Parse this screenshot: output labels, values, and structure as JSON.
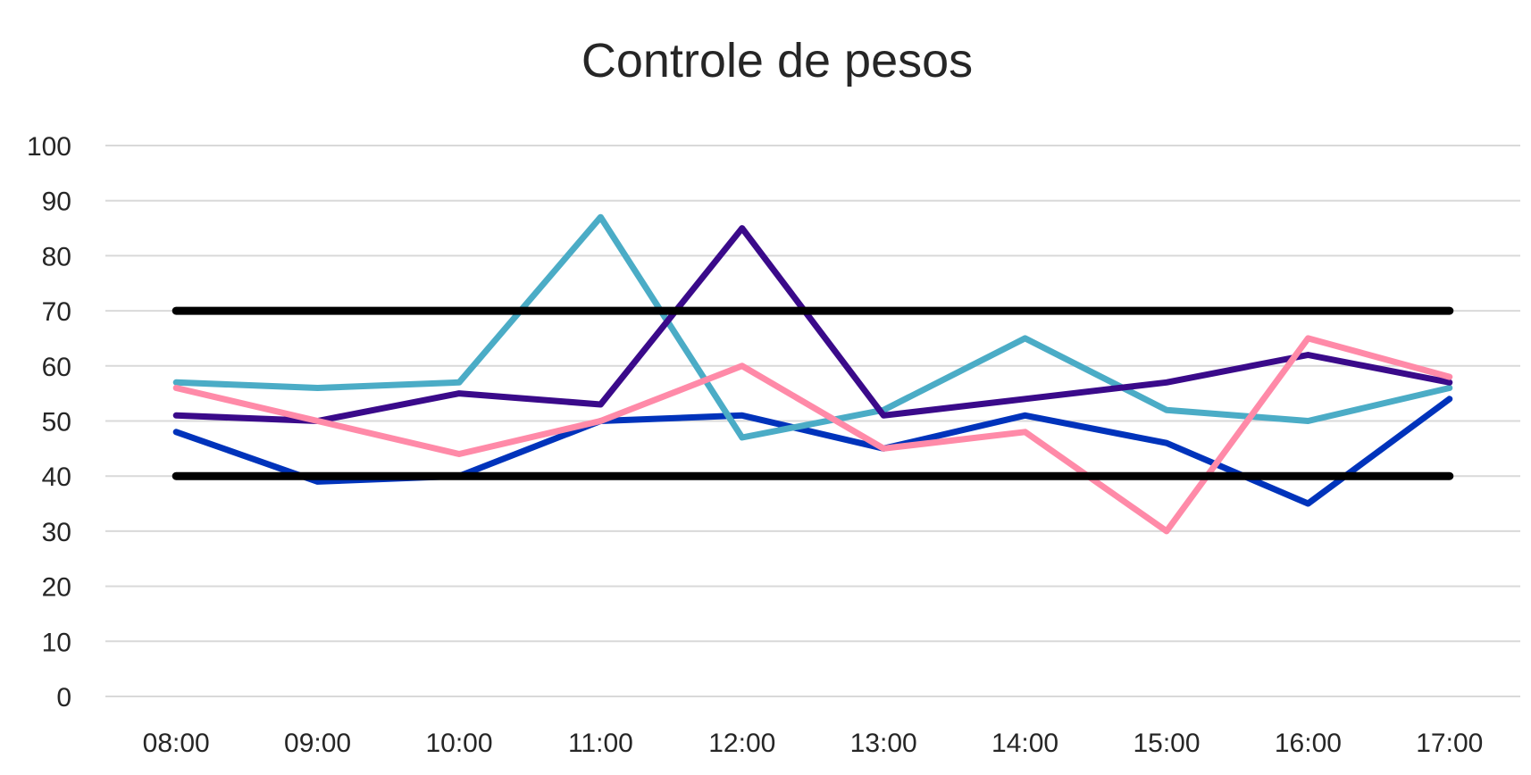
{
  "chart_data": {
    "type": "line",
    "title": "Controle de pesos",
    "xlabel": "",
    "ylabel": "",
    "ylim": [
      0,
      100
    ],
    "y_ticks": [
      "0",
      "10",
      "20",
      "30",
      "40",
      "50",
      "60",
      "70",
      "80",
      "90",
      "100"
    ],
    "categories": [
      "08:00",
      "09:00",
      "10:00",
      "11:00",
      "12:00",
      "13:00",
      "14:00",
      "15:00",
      "16:00",
      "17:00"
    ],
    "grid": true,
    "legend": "none",
    "series": [
      {
        "color": "#0033BB",
        "role": "data",
        "values": [
          48,
          39,
          40,
          50,
          51,
          45,
          51,
          46,
          35,
          54
        ]
      },
      {
        "color": "#4BACC6",
        "role": "data",
        "values": [
          57,
          56,
          57,
          87,
          47,
          52,
          65,
          52,
          50,
          56
        ]
      },
      {
        "color": "#3A0A8A",
        "role": "data",
        "values": [
          51,
          50,
          55,
          53,
          85,
          51,
          54,
          57,
          62,
          57
        ]
      },
      {
        "color": "#FF8AA8",
        "role": "data",
        "values": [
          56,
          50,
          44,
          50,
          60,
          45,
          48,
          30,
          65,
          58
        ]
      },
      {
        "color": "#000000",
        "role": "limit",
        "values": [
          70,
          70,
          70,
          70,
          70,
          70,
          70,
          70,
          70,
          70
        ]
      },
      {
        "color": "#000000",
        "role": "limit",
        "values": [
          40,
          40,
          40,
          40,
          40,
          40,
          40,
          40,
          40,
          40
        ]
      }
    ],
    "colors": {
      "gridline": "#D9D9D9",
      "text": "#262626",
      "background": "#FFFFFF"
    }
  }
}
